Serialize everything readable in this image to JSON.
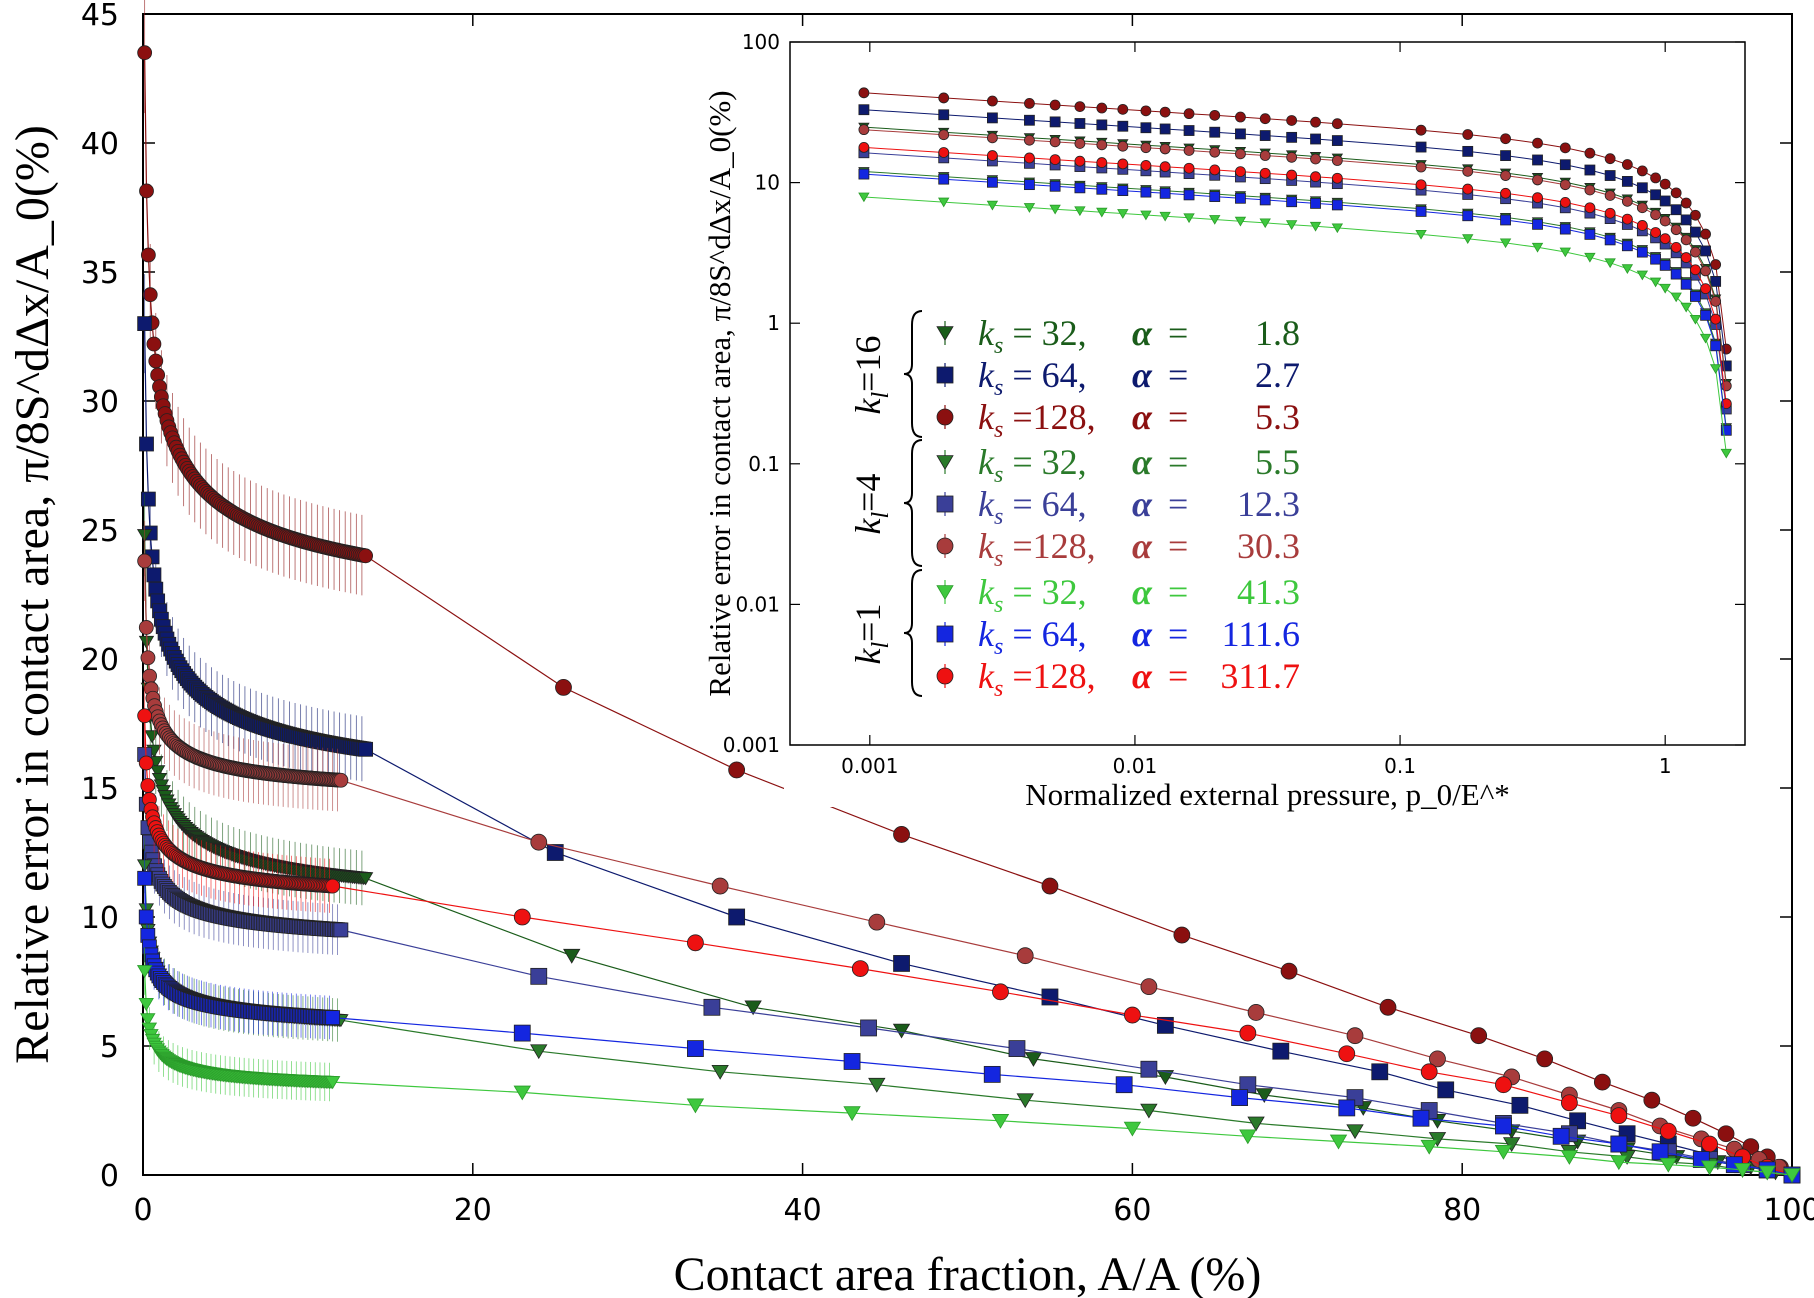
{
  "chart_data": [
    {
      "type": "scatter",
      "xlabel": "Contact area fraction, A/A  (%)",
      "ylabel": "Relative error in contact area, π/8S^dΔx/A_0(%)",
      "xlim": [
        0,
        100
      ],
      "ylim": [
        0,
        45
      ],
      "xticks": [
        "0",
        "20",
        "40",
        "60",
        "80",
        "100"
      ],
      "yticks": [
        "0",
        "5",
        "10",
        "15",
        "20",
        "25",
        "30",
        "35",
        "40",
        "45"
      ],
      "series": [
        {
          "name": "k_l=16, k_s=128",
          "color": "#8b1010",
          "marker": "circle",
          "dense": {
            "x0": 0.1,
            "x1": 13.5,
            "y0": 43.5,
            "y1": 24.0,
            "p": 0.33,
            "n": 120
          },
          "x": [
            25.5,
            36,
            46,
            55,
            63,
            69.5,
            75.5,
            81,
            85,
            88.5,
            91.5,
            94,
            96,
            97.5,
            98.5,
            99.3,
            100
          ],
          "y": [
            18.9,
            15.7,
            13.2,
            11.2,
            9.3,
            7.9,
            6.5,
            5.4,
            4.5,
            3.6,
            2.9,
            2.2,
            1.6,
            1.1,
            0.7,
            0.3,
            0.0
          ]
        },
        {
          "name": "k_l=16, k_s=64",
          "color": "#0d1a6e",
          "marker": "square",
          "dense": {
            "x0": 0.1,
            "x1": 13.5,
            "y0": 33.0,
            "y1": 16.5,
            "p": 0.35,
            "n": 120
          },
          "x": [
            25,
            36,
            46,
            55,
            62,
            69,
            75,
            79,
            83.5,
            87,
            90,
            92.5,
            95,
            97,
            98.5,
            100
          ],
          "y": [
            12.5,
            10.0,
            8.2,
            6.9,
            5.8,
            4.8,
            4.0,
            3.3,
            2.7,
            2.1,
            1.6,
            1.2,
            0.8,
            0.5,
            0.2,
            0.0
          ]
        },
        {
          "name": "k_l=16, k_s=32",
          "color": "#1a5c1a",
          "marker": "triangle",
          "dense": {
            "x0": 0.1,
            "x1": 13.5,
            "y0": 24.8,
            "y1": 11.5,
            "p": 0.42,
            "n": 120
          },
          "x": [
            26,
            37,
            46,
            54,
            62,
            68,
            74,
            78.5,
            83,
            87,
            90,
            93,
            95.5,
            97.5,
            99,
            100
          ],
          "y": [
            8.5,
            6.5,
            5.6,
            4.5,
            3.8,
            3.1,
            2.6,
            2.1,
            1.7,
            1.3,
            1.0,
            0.7,
            0.5,
            0.3,
            0.1,
            0.0
          ]
        },
        {
          "name": "k_l=4, k_s=128",
          "color": "#a83c3c",
          "marker": "circle",
          "dense": {
            "x0": 0.1,
            "x1": 12.0,
            "y0": 23.8,
            "y1": 15.3,
            "p": 0.45,
            "n": 120
          },
          "x": [
            24,
            35,
            44.5,
            53.5,
            61,
            67.5,
            73.5,
            78.5,
            83,
            86.5,
            89.5,
            92,
            94.5,
            96.5,
            98,
            99.2,
            100
          ],
          "y": [
            12.9,
            11.2,
            9.8,
            8.5,
            7.3,
            6.3,
            5.4,
            4.5,
            3.8,
            3.1,
            2.5,
            1.9,
            1.4,
            1.0,
            0.6,
            0.3,
            0.0
          ]
        },
        {
          "name": "k_l=4, k_s=64",
          "color": "#3a3f98",
          "marker": "square",
          "dense": {
            "x0": 0.1,
            "x1": 12.0,
            "y0": 16.3,
            "y1": 9.5,
            "p": 0.4,
            "n": 120
          },
          "x": [
            24,
            34.5,
            44,
            53,
            61,
            67,
            73.5,
            78,
            82.5,
            86.5,
            89.5,
            92.5,
            95,
            97,
            98.5,
            100
          ],
          "y": [
            7.7,
            6.5,
            5.7,
            4.9,
            4.1,
            3.5,
            3.0,
            2.5,
            2.0,
            1.6,
            1.2,
            0.9,
            0.6,
            0.4,
            0.2,
            0.0
          ]
        },
        {
          "name": "k_l=4, k_s=32",
          "color": "#2a7a2a",
          "marker": "triangle",
          "dense": {
            "x0": 0.1,
            "x1": 12.0,
            "y0": 12.0,
            "y1": 6.0,
            "p": 0.4,
            "n": 120
          },
          "x": [
            24,
            35,
            44.5,
            53.5,
            61,
            67.5,
            73.5,
            78.5,
            83,
            86.5,
            90,
            92.5,
            95,
            97,
            98.5,
            100
          ],
          "y": [
            4.8,
            4.0,
            3.5,
            2.9,
            2.5,
            2.0,
            1.7,
            1.4,
            1.2,
            0.9,
            0.7,
            0.5,
            0.4,
            0.2,
            0.1,
            0.0
          ]
        },
        {
          "name": "k_l=1, k_s=128",
          "color": "#ee1111",
          "marker": "circle",
          "dense": {
            "x0": 0.1,
            "x1": 11.5,
            "y0": 17.8,
            "y1": 11.2,
            "p": 0.4,
            "n": 120
          },
          "x": [
            23,
            33.5,
            43.5,
            52,
            60,
            67,
            73,
            78,
            82.5,
            86.5,
            89.5,
            92.5,
            95,
            97,
            98.5,
            100
          ],
          "y": [
            10.0,
            9.0,
            8.0,
            7.1,
            6.2,
            5.5,
            4.7,
            4.0,
            3.5,
            2.8,
            2.3,
            1.7,
            1.2,
            0.7,
            0.3,
            0.0
          ]
        },
        {
          "name": "k_l=1, k_s=64",
          "color": "#1426e0",
          "marker": "square",
          "dense": {
            "x0": 0.1,
            "x1": 11.5,
            "y0": 11.5,
            "y1": 6.1,
            "p": 0.4,
            "n": 120
          },
          "x": [
            23,
            33.5,
            43,
            51.5,
            59.5,
            66.5,
            73,
            77.5,
            82.5,
            86,
            89.5,
            92,
            94.5,
            96.5,
            98.5,
            100
          ],
          "y": [
            5.5,
            4.9,
            4.4,
            3.9,
            3.5,
            3.0,
            2.6,
            2.2,
            1.9,
            1.5,
            1.2,
            0.9,
            0.6,
            0.4,
            0.2,
            0.0
          ]
        },
        {
          "name": "k_l=1, k_s=32",
          "color": "#3ec83e",
          "marker": "triangle-open",
          "dense": {
            "x0": 0.1,
            "x1": 11.5,
            "y0": 7.9,
            "y1": 3.6,
            "p": 0.45,
            "n": 120
          },
          "x": [
            23,
            33.5,
            43,
            52,
            60,
            67,
            72.5,
            78,
            82.5,
            86.5,
            89.5,
            92.5,
            95,
            97,
            98.5,
            100
          ],
          "y": [
            3.2,
            2.7,
            2.4,
            2.1,
            1.8,
            1.5,
            1.3,
            1.1,
            0.9,
            0.7,
            0.5,
            0.4,
            0.3,
            0.2,
            0.1,
            0.0
          ]
        }
      ]
    },
    {
      "type": "scatter",
      "xscale": "log",
      "yscale": "log",
      "xlabel": "Normalized external pressure, p_0/E^*",
      "ylabel": "Relative error in contact area, π/8S^dΔx/A_0(%)",
      "xlim": [
        0.0005,
        2
      ],
      "ylim": [
        0.001,
        100
      ],
      "xticks": [
        "0.001",
        "0.01",
        "0.1",
        "1"
      ],
      "yticks": [
        "0.001",
        "0.01",
        "0.1",
        "1",
        "10",
        "100"
      ],
      "series": [
        {
          "name": "k_l=16, k_s=128",
          "color": "#8b1010",
          "marker": "circle",
          "y0": 43.5
        },
        {
          "name": "k_l=16, k_s=64",
          "color": "#0d1a6e",
          "marker": "square",
          "y0": 33.0
        },
        {
          "name": "k_l=16, k_s=32",
          "color": "#1a5c1a",
          "marker": "triangle",
          "y0": 24.8
        },
        {
          "name": "k_l=4, k_s=128",
          "color": "#a83c3c",
          "marker": "circle",
          "y0": 23.8
        },
        {
          "name": "k_l=4, k_s=64",
          "color": "#3a3f98",
          "marker": "square",
          "y0": 16.3
        },
        {
          "name": "k_l=4, k_s=32",
          "color": "#2a7a2a",
          "marker": "triangle",
          "y0": 12.0
        },
        {
          "name": "k_l=1, k_s=128",
          "color": "#ee1111",
          "marker": "circle",
          "y0": 17.8
        },
        {
          "name": "k_l=1, k_s=64",
          "color": "#1426e0",
          "marker": "square",
          "y0": 11.5
        },
        {
          "name": "k_l=1, k_s=32",
          "color": "#3ec83e",
          "marker": "triangle-open",
          "y0": 7.9
        }
      ]
    }
  ],
  "legend": {
    "groups": [
      {
        "kl_label": "k",
        "kl_sub": "l",
        "kl_value": "=16",
        "rows": [
          {
            "ks": "= 32,",
            "alpha": "1.8",
            "color": "#1a5c1a",
            "marker": "triangle"
          },
          {
            "ks": "= 64,",
            "alpha": "2.7",
            "color": "#0d1a6e",
            "marker": "square"
          },
          {
            "ks": "=128,",
            "alpha": "5.3",
            "color": "#8b1010",
            "marker": "circle"
          }
        ]
      },
      {
        "kl_label": "k",
        "kl_sub": "l",
        "kl_value": "=4",
        "rows": [
          {
            "ks": "= 32,",
            "alpha": "5.5",
            "color": "#2a7a2a",
            "marker": "triangle"
          },
          {
            "ks": "= 64,",
            "alpha": "12.3",
            "color": "#3a3f98",
            "marker": "square"
          },
          {
            "ks": "=128,",
            "alpha": "30.3",
            "color": "#a83c3c",
            "marker": "circle"
          }
        ]
      },
      {
        "kl_label": "k",
        "kl_sub": "l",
        "kl_value": "=1",
        "rows": [
          {
            "ks": "= 32,",
            "alpha": "41.3",
            "color": "#3ec83e",
            "marker": "triangle-open"
          },
          {
            "ks": "= 64,",
            "alpha": "111.6",
            "color": "#1426e0",
            "marker": "square"
          },
          {
            "ks": "=128,",
            "alpha": "311.7",
            "color": "#ee1111",
            "marker": "circle"
          }
        ]
      }
    ],
    "ks_symbol": "k",
    "ks_sub": "s",
    "alpha_symbol": "α",
    "alpha_eq": "="
  }
}
